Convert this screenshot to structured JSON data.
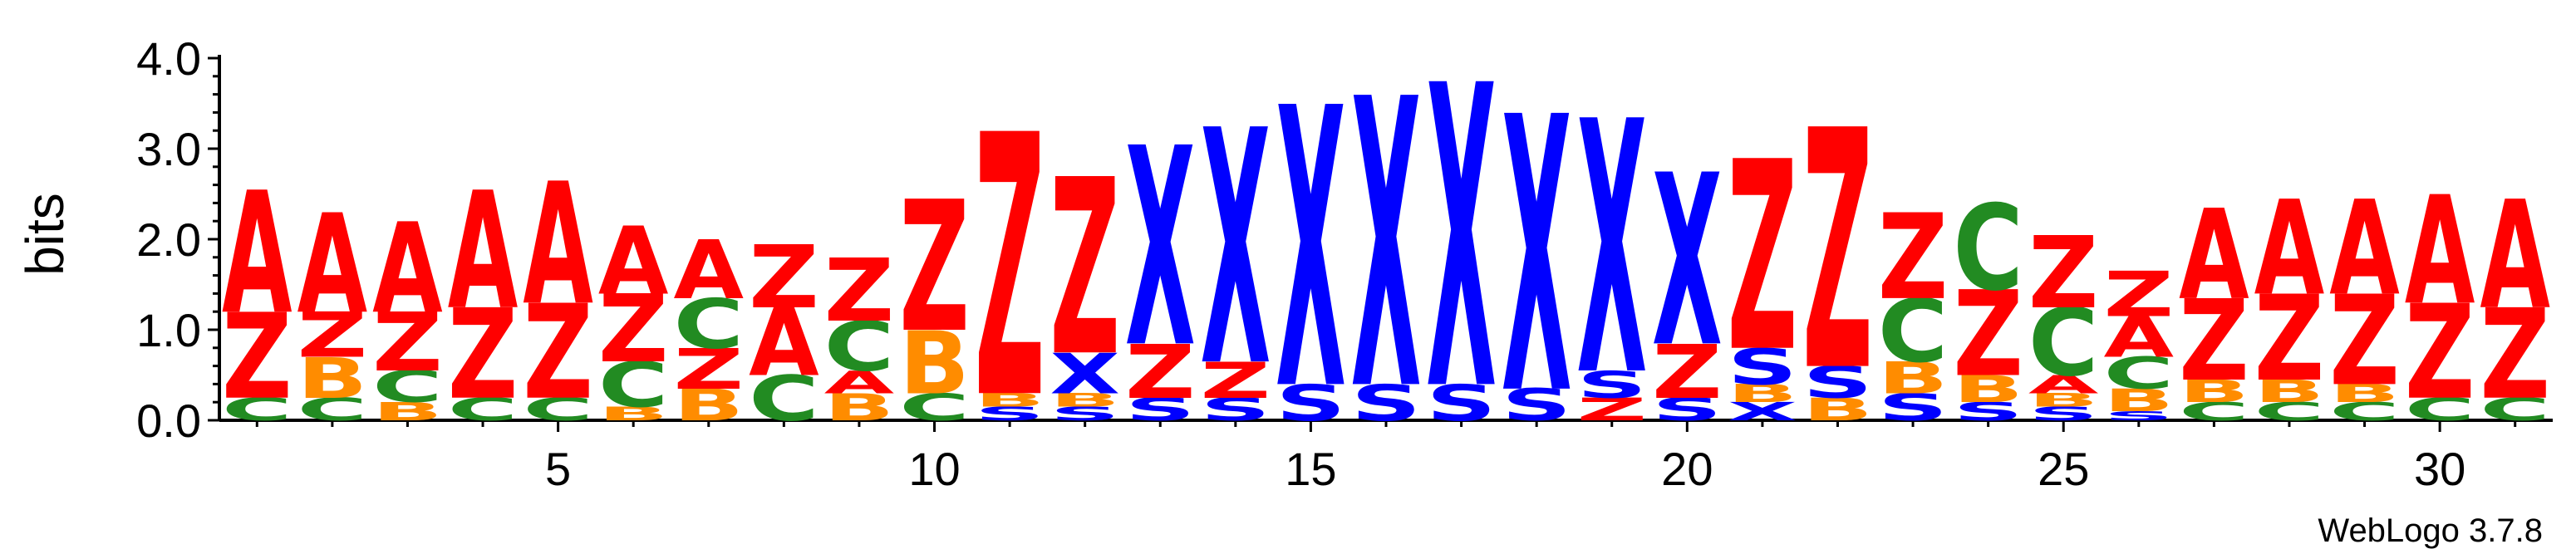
{
  "chart_data": {
    "type": "sequence-logo",
    "ylabel": "bits",
    "ylim": [
      0,
      4
    ],
    "y_ticks": [
      "0.0",
      "1.0",
      "2.0",
      "3.0",
      "4.0"
    ],
    "x_ticks": [
      5,
      10,
      15,
      20,
      25,
      30
    ],
    "positions": 31,
    "colors": {
      "A": "#ff0000",
      "Z": "#ff0000",
      "X": "#0000ff",
      "S": "#0000ff",
      "B": "#ff8c00",
      "C": "#228b22"
    },
    "stacks": [
      [
        [
          "C",
          0.25
        ],
        [
          "Z",
          0.95
        ],
        [
          "A",
          1.35
        ]
      ],
      [
        [
          "C",
          0.25
        ],
        [
          "B",
          0.45
        ],
        [
          "Z",
          0.5
        ],
        [
          "A",
          1.1
        ]
      ],
      [
        [
          "B",
          0.2
        ],
        [
          "C",
          0.35
        ],
        [
          "Z",
          0.65
        ],
        [
          "A",
          1.0
        ]
      ],
      [
        [
          "C",
          0.25
        ],
        [
          "Z",
          1.0
        ],
        [
          "A",
          1.3
        ]
      ],
      [
        [
          "C",
          0.25
        ],
        [
          "Z",
          1.05
        ],
        [
          "A",
          1.35
        ]
      ],
      [
        [
          "B",
          0.15
        ],
        [
          "C",
          0.5
        ],
        [
          "Z",
          0.75
        ],
        [
          "A",
          0.75
        ]
      ],
      [
        [
          "B",
          0.35
        ],
        [
          "Z",
          0.45
        ],
        [
          "C",
          0.55
        ],
        [
          "A",
          0.65
        ]
      ],
      [
        [
          "C",
          0.5
        ],
        [
          "A",
          0.75
        ],
        [
          "Z",
          0.7
        ]
      ],
      [
        [
          "B",
          0.3
        ],
        [
          "A",
          0.25
        ],
        [
          "C",
          0.55
        ],
        [
          "Z",
          0.7
        ]
      ],
      [
        [
          "C",
          0.3
        ],
        [
          "B",
          0.7
        ],
        [
          "Z",
          1.45
        ]
      ],
      [
        [
          "S",
          0.15
        ],
        [
          "B",
          0.15
        ],
        [
          "Z",
          2.9
        ]
      ],
      [
        [
          "S",
          0.15
        ],
        [
          "B",
          0.15
        ],
        [
          "X",
          0.45
        ],
        [
          "Z",
          1.95
        ]
      ],
      [
        [
          "S",
          0.25
        ],
        [
          "Z",
          0.6
        ],
        [
          "X",
          2.2
        ]
      ],
      [
        [
          "S",
          0.25
        ],
        [
          "Z",
          0.4
        ],
        [
          "X",
          2.6
        ]
      ],
      [
        [
          "S",
          0.4
        ],
        [
          "X",
          3.1
        ]
      ],
      [
        [
          "S",
          0.4
        ],
        [
          "X",
          3.2
        ]
      ],
      [
        [
          "S",
          0.4
        ],
        [
          "X",
          3.35
        ]
      ],
      [
        [
          "S",
          0.35
        ],
        [
          "X",
          3.05
        ]
      ],
      [
        [
          "Z",
          0.25
        ],
        [
          "S",
          0.3
        ],
        [
          "X",
          2.8
        ]
      ],
      [
        [
          "S",
          0.25
        ],
        [
          "Z",
          0.6
        ],
        [
          "X",
          1.9
        ]
      ],
      [
        [
          "X",
          0.2
        ],
        [
          "B",
          0.2
        ],
        [
          "S",
          0.4
        ],
        [
          "Z",
          2.1
        ]
      ],
      [
        [
          "B",
          0.25
        ],
        [
          "S",
          0.35
        ],
        [
          "Z",
          2.65
        ]
      ],
      [
        [
          "S",
          0.3
        ],
        [
          "B",
          0.35
        ],
        [
          "C",
          0.7
        ],
        [
          "Z",
          0.95
        ]
      ],
      [
        [
          "S",
          0.2
        ],
        [
          "B",
          0.3
        ],
        [
          "Z",
          0.95
        ],
        [
          "C",
          0.95
        ]
      ],
      [
        [
          "S",
          0.15
        ],
        [
          "B",
          0.15
        ],
        [
          "A",
          0.2
        ],
        [
          "C",
          0.75
        ],
        [
          "Z",
          0.8
        ]
      ],
      [
        [
          "S",
          0.1
        ],
        [
          "B",
          0.25
        ],
        [
          "C",
          0.35
        ],
        [
          "A",
          0.45
        ],
        [
          "Z",
          0.5
        ]
      ],
      [
        [
          "C",
          0.2
        ],
        [
          "B",
          0.25
        ],
        [
          "Z",
          0.9
        ],
        [
          "A",
          1.0
        ]
      ],
      [
        [
          "C",
          0.2
        ],
        [
          "B",
          0.25
        ],
        [
          "Z",
          0.95
        ],
        [
          "A",
          1.05
        ]
      ],
      [
        [
          "C",
          0.2
        ],
        [
          "B",
          0.2
        ],
        [
          "Z",
          1.0
        ],
        [
          "A",
          1.05
        ]
      ],
      [
        [
          "C",
          0.25
        ],
        [
          "Z",
          1.05
        ],
        [
          "A",
          1.2
        ]
      ],
      [
        [
          "C",
          0.25
        ],
        [
          "Z",
          1.0
        ],
        [
          "A",
          1.2
        ]
      ]
    ]
  },
  "footer": {
    "version": "WebLogo 3.7.8"
  }
}
